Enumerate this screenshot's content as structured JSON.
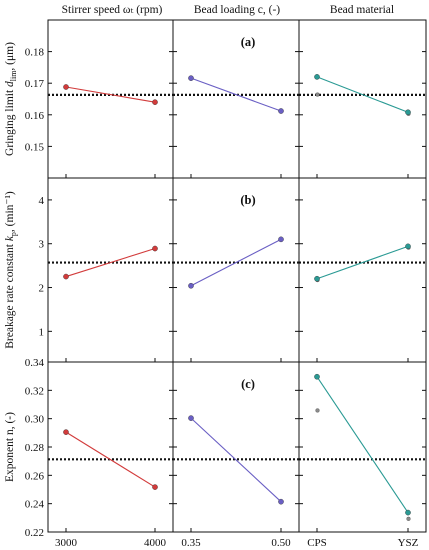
{
  "column_headers": [
    "Stirrer speed ωₜ (rpm)",
    "Bead loading c, (-)",
    "Bead material"
  ],
  "chart_data": [
    {
      "type": "line",
      "panel_label": "(a)",
      "ylabel": "Gringing limit d_lim, (μm)",
      "ylim": [
        0.14,
        0.19
      ],
      "yticks": [
        "0.15",
        "0.16",
        "0.17",
        "0.18"
      ],
      "yticks_values": [
        0.15,
        0.16,
        0.17,
        0.18
      ],
      "mean": 0.1663,
      "columns": [
        {
          "categories": [
            "3000",
            "4000"
          ],
          "values": [
            0.1688,
            0.164
          ],
          "color": "#d23b3b"
        },
        {
          "categories": [
            "0.35",
            "0.50"
          ],
          "values": [
            0.1716,
            0.1612
          ],
          "color": "#6a5fc4"
        },
        {
          "categories": [
            "CPS",
            "YSZ"
          ],
          "values": [
            0.172,
            0.1608
          ],
          "color": "#2a9a94",
          "extra_points": [
            {
              "x": 0,
              "y": 0.1664
            },
            {
              "x": 1,
              "y": 0.1603
            }
          ]
        }
      ]
    },
    {
      "type": "line",
      "panel_label": "(b)",
      "ylabel": "Breakage rate constant k_p, (min⁻¹)",
      "ylim": [
        0.3,
        4.5
      ],
      "yticks": [
        "1",
        "2",
        "3",
        "4"
      ],
      "yticks_values": [
        1,
        2,
        3,
        4
      ],
      "mean": 2.57,
      "columns": [
        {
          "categories": [
            "3000",
            "4000"
          ],
          "values": [
            2.25,
            2.89
          ],
          "color": "#d23b3b"
        },
        {
          "categories": [
            "0.35",
            "0.50"
          ],
          "values": [
            2.04,
            3.1
          ],
          "color": "#6a5fc4"
        },
        {
          "categories": [
            "CPS",
            "YSZ"
          ],
          "values": [
            2.2,
            2.94
          ],
          "color": "#2a9a94",
          "extra_points": [
            {
              "x": 0,
              "y": 2.17
            },
            {
              "x": 1,
              "y": 2.91
            }
          ]
        }
      ]
    },
    {
      "type": "line",
      "panel_label": "(c)",
      "ylabel": "Exponent n, (-)",
      "ylim": [
        0.22,
        0.34
      ],
      "yticks": [
        "0.22",
        "0.24",
        "0.26",
        "0.28",
        "0.30",
        "0.32",
        "0.34"
      ],
      "yticks_values": [
        0.22,
        0.24,
        0.26,
        0.28,
        0.3,
        0.32,
        0.34
      ],
      "mean": 0.2713,
      "columns": [
        {
          "categories": [
            "3000",
            "4000"
          ],
          "values": [
            0.2905,
            0.2517
          ],
          "color": "#d23b3b"
        },
        {
          "categories": [
            "0.35",
            "0.50"
          ],
          "values": [
            0.3004,
            0.2414
          ],
          "color": "#6a5fc4"
        },
        {
          "categories": [
            "CPS",
            "YSZ"
          ],
          "values": [
            0.3296,
            0.2337
          ],
          "color": "#2a9a94",
          "extra_points": [
            {
              "x": 0,
              "y": 0.3058
            },
            {
              "x": 1,
              "y": 0.2293
            }
          ]
        }
      ]
    }
  ]
}
